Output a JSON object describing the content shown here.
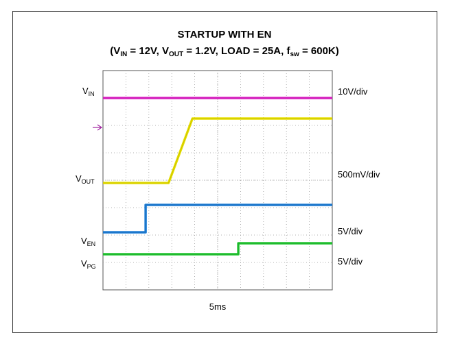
{
  "chart_data": {
    "type": "line",
    "title": "STARTUP WITH EN",
    "subtitle": {
      "parts": [
        {
          "t": "(V"
        },
        {
          "sub": "IN"
        },
        {
          "t": " = 12V, V"
        },
        {
          "sub": "OUT"
        },
        {
          "t": " = 1.2V, LOAD = 25A, f"
        },
        {
          "sub": "sw"
        },
        {
          "t": " = 600K)"
        }
      ]
    },
    "time_scale": "5ms",
    "xlim": [
      0,
      50
    ],
    "ylim": [
      0,
      8
    ],
    "grid": true,
    "series": [
      {
        "name_main": "V",
        "name_sub": "IN",
        "scale": "10V/div",
        "color": "#e020c8",
        "points": [
          [
            0,
            7.0
          ],
          [
            50,
            7.0
          ]
        ]
      },
      {
        "name_main": "V",
        "name_sub": "OUT",
        "scale": "500mV/div",
        "color": "#e8e000",
        "points": [
          [
            0,
            3.9
          ],
          [
            14.3,
            3.9
          ],
          [
            19.5,
            6.25
          ],
          [
            50,
            6.25
          ]
        ]
      },
      {
        "name_main": "V",
        "name_sub": "EN",
        "scale": "5V/div",
        "color": "#1e7fd8",
        "points": [
          [
            0,
            2.1
          ],
          [
            9.3,
            2.1
          ],
          [
            9.3,
            3.1
          ],
          [
            50,
            3.1
          ]
        ]
      },
      {
        "name_main": "V",
        "name_sub": "PG",
        "scale": "5V/div",
        "color": "#22c832",
        "points": [
          [
            0,
            1.3
          ],
          [
            29.5,
            1.3
          ],
          [
            29.5,
            1.7
          ],
          [
            50,
            1.7
          ]
        ]
      }
    ],
    "arrow_marker_color": "#a020a0"
  }
}
